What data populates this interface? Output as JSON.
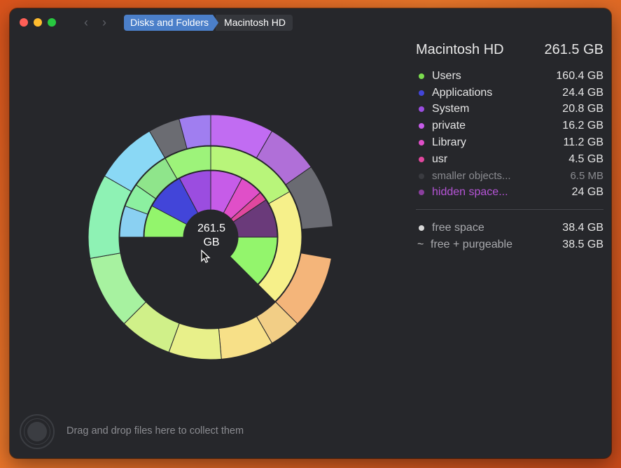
{
  "window": {
    "breadcrumbs": [
      "Disks and Folders",
      "Macintosh HD"
    ]
  },
  "chart": {
    "center_value": "261.5",
    "center_unit": "GB"
  },
  "legend": {
    "title": "Macintosh HD",
    "total": "261.5 GB",
    "items": [
      {
        "name": "Users",
        "value": "160.4 GB",
        "color": "#7bdc4e"
      },
      {
        "name": "Applications",
        "value": "24.4 GB",
        "color": "#4245d9"
      },
      {
        "name": "System",
        "value": "20.8 GB",
        "color": "#9b4de0"
      },
      {
        "name": "private",
        "value": "16.2 GB",
        "color": "#c65ce8"
      },
      {
        "name": "Library",
        "value": "11.2 GB",
        "color": "#e04fc8"
      },
      {
        "name": "usr",
        "value": "4.5 GB",
        "color": "#e0479e"
      },
      {
        "name": "smaller objects...",
        "value": "6.5  MB",
        "color": "#3a3b40"
      },
      {
        "name": "hidden space...",
        "value": "24   GB",
        "color": "#8a3f9e",
        "name_color": "#b554d6"
      }
    ],
    "free_space": {
      "label": "free space",
      "value": "38.4 GB",
      "dot_color": "#d8d8d8"
    },
    "free_purgeable": {
      "label": "free + purgeable",
      "value": "38.5 GB",
      "symbol": "~"
    }
  },
  "drop_zone": {
    "text": "Drag and drop files here to collect them",
    "icon": "drop-target-icon"
  }
}
